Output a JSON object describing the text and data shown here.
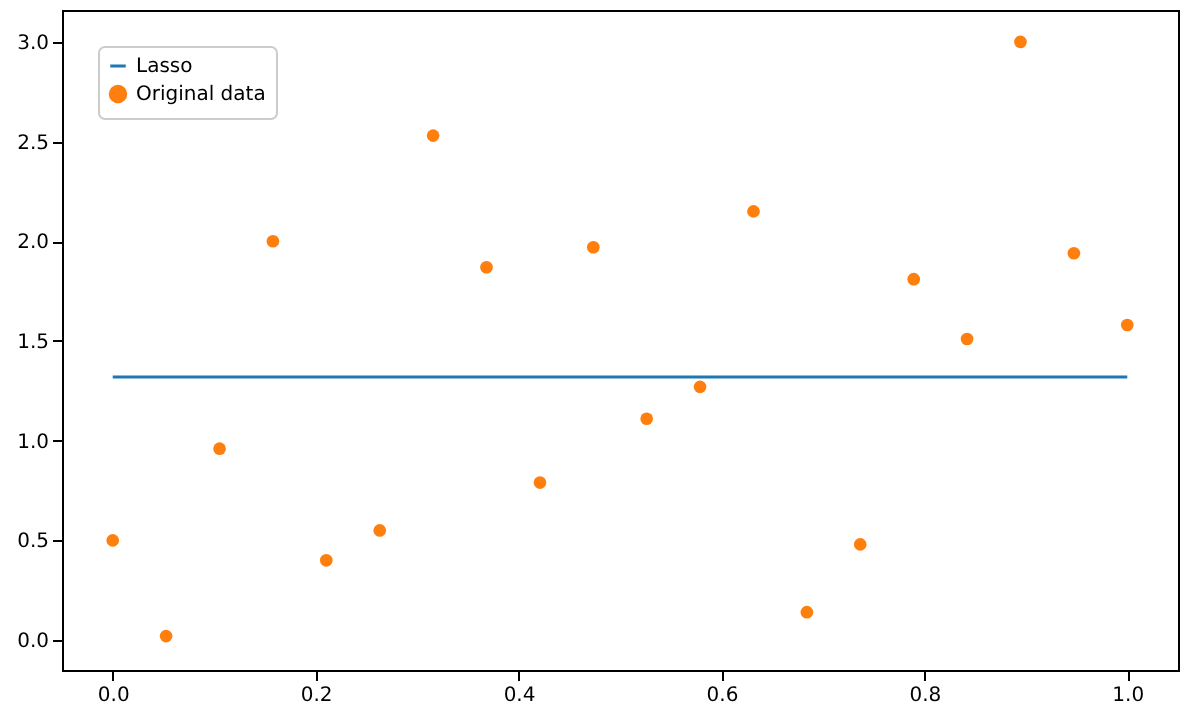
{
  "chart_data": {
    "type": "scatter",
    "series": [
      {
        "name": "Lasso",
        "type": "line",
        "color": "#1f77b4",
        "x": [
          0,
          1
        ],
        "values": [
          1.32,
          1.32
        ]
      },
      {
        "name": "Original data",
        "marker": "circle",
        "color": "#ff7f0e",
        "x": [
          0,
          0.0526,
          0.1053,
          0.1579,
          0.2105,
          0.2632,
          0.3158,
          0.3684,
          0.4211,
          0.4737,
          0.5263,
          0.5789,
          0.6316,
          0.6842,
          0.7368,
          0.7895,
          0.8421,
          0.8947,
          0.9474,
          1
        ],
        "values": [
          0.5,
          0.02,
          0.96,
          2.0,
          0.4,
          0.55,
          2.53,
          1.87,
          0.79,
          1.97,
          1.11,
          1.27,
          2.15,
          0.14,
          0.48,
          1.81,
          1.51,
          3.0,
          1.94,
          1.58
        ]
      }
    ],
    "xlim": [
      -0.05,
      1.05
    ],
    "ylim": [
      -0.15,
      3.16
    ],
    "xticks": [
      {
        "value": 0,
        "label": "0.0"
      },
      0.2,
      0.4,
      0.6,
      0.8,
      {
        "value": 1,
        "label": "1.0"
      }
    ],
    "yticks": [
      {
        "value": 0,
        "label": "0.0"
      },
      0.5,
      {
        "value": 1,
        "label": "1.0"
      },
      1.5,
      {
        "value": 2,
        "label": "2.0"
      },
      2.5,
      {
        "value": 3,
        "label": "3.0"
      }
    ],
    "legend": "top left",
    "grid": false
  }
}
